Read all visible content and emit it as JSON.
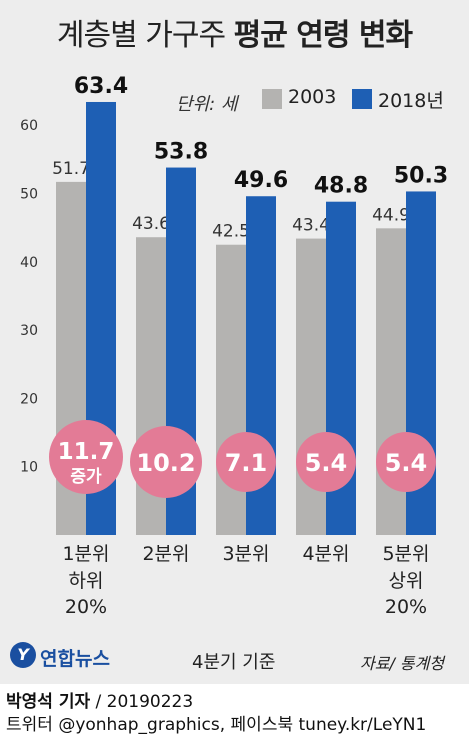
{
  "title": {
    "part1": "계층별 가구주",
    "part2": "평균 연령 변화"
  },
  "unit_label": "단위: 세",
  "colors": {
    "series_2003": "#b4b3b1",
    "series_2018": "#1e5fb4",
    "bubble": "#e37b96",
    "background": "#ededed",
    "bubble_text": "#ffffff"
  },
  "chart_data": {
    "type": "bar",
    "categories": [
      "1분위",
      "2분위",
      "3분위",
      "4분위",
      "5분위"
    ],
    "category_sublabels": [
      "하위 20%",
      "",
      "",
      "",
      "상위 20%"
    ],
    "series": [
      {
        "name": "2003",
        "values": [
          51.7,
          43.6,
          42.5,
          43.4,
          44.9
        ]
      },
      {
        "name": "2018년",
        "values": [
          63.4,
          53.8,
          49.6,
          48.8,
          50.3
        ]
      }
    ],
    "increase": {
      "values": [
        "11.7",
        "10.2",
        "7.1",
        "5.4",
        "5.4"
      ],
      "first_label_suffix": "증가"
    },
    "ylim": [
      0,
      65
    ],
    "yticks": [
      10,
      20,
      30,
      40,
      50,
      60
    ],
    "grid": false,
    "legend_position": "top-right"
  },
  "note": "4분기 기준",
  "source": "자료/ 통계청",
  "logo": {
    "mark": "Y",
    "name": "연합뉴스"
  },
  "footer": {
    "reporter": "박영석 기자",
    "date": "/ 20190223",
    "sns": "트위터 @yonhap_graphics, 페이스북 tuney.kr/LeYN1"
  }
}
